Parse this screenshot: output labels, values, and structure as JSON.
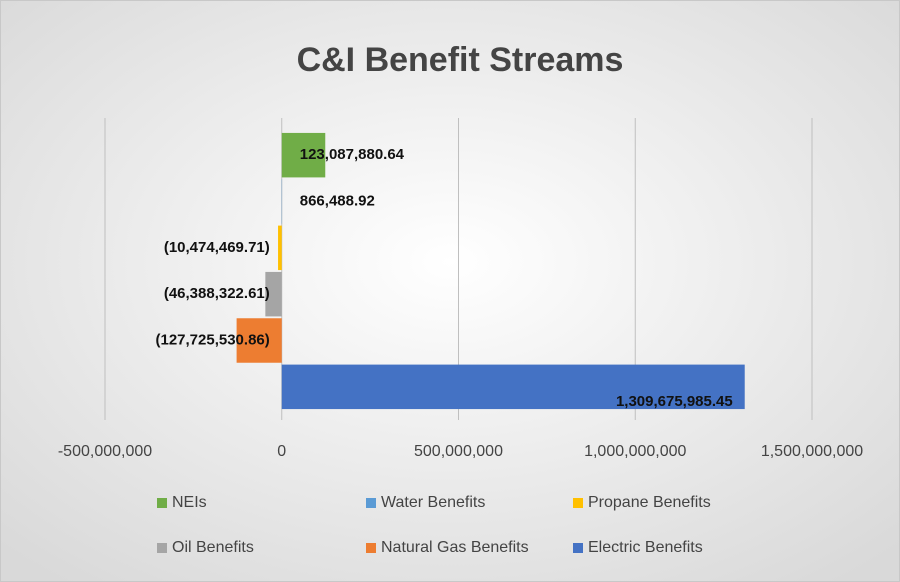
{
  "chart_data": {
    "type": "bar",
    "orientation": "horizontal",
    "title": "C&I Benefit Streams",
    "series": [
      {
        "name": "NEIs",
        "color": "#70ad47",
        "values": [
          123087880.64
        ],
        "value_labels": [
          "123,087,880.64"
        ]
      },
      {
        "name": "Water Benefits",
        "color": "#5b9bd5",
        "values": [
          866488.92
        ],
        "value_labels": [
          "866,488.92"
        ]
      },
      {
        "name": "Propane Benefits",
        "color": "#ffc000",
        "values": [
          -10474469.71
        ],
        "value_labels": [
          "(10,474,469.71)"
        ]
      },
      {
        "name": "Oil Benefits",
        "color": "#a5a5a5",
        "values": [
          -46388322.61
        ],
        "value_labels": [
          "(46,388,322.61)"
        ]
      },
      {
        "name": "Natural Gas Benefits",
        "color": "#ed7d31",
        "values": [
          -127725530.86
        ],
        "value_labels": [
          "(127,725,530.86)"
        ]
      },
      {
        "name": "Electric Benefits",
        "color": "#4472c4",
        "values": [
          1309675985.45
        ],
        "value_labels": [
          "1,309,675,985.45"
        ]
      }
    ],
    "xlim": [
      -500000000,
      1500000000
    ],
    "xticks": [
      {
        "value": -500000000,
        "label": "-500,000,000"
      },
      0,
      {
        "value": 500000000,
        "label": "500,000,000"
      },
      {
        "value": 1000000000,
        "label": "1,000,000,000"
      },
      {
        "value": 1500000000,
        "label": "1,500,000,000"
      }
    ],
    "grid": true,
    "legend": "bottom"
  }
}
